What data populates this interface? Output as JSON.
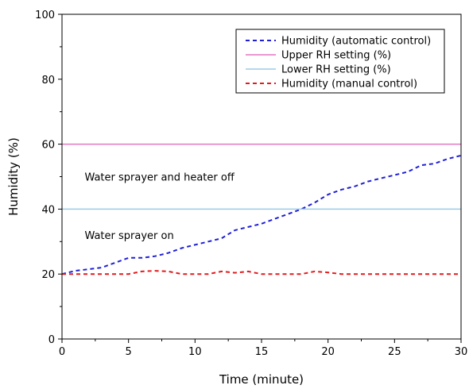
{
  "chart_data": {
    "type": "line",
    "xlabel": "Time (minute)",
    "ylabel": "Humidity (%)",
    "xlim": [
      0,
      30
    ],
    "ylim": [
      0,
      100
    ],
    "xticks": [
      0,
      5,
      10,
      15,
      20,
      25,
      30
    ],
    "yticks": [
      0,
      20,
      40,
      60,
      80,
      100
    ],
    "grid": false,
    "legend_position": "top-right",
    "series": [
      {
        "name": "Humidity (automatic control)",
        "color": "#1f1fd6",
        "style": "dashed",
        "x": [
          0,
          1,
          2,
          3,
          4,
          5,
          6,
          7,
          8,
          9,
          10,
          11,
          12,
          13,
          14,
          15,
          16,
          17,
          18,
          19,
          20,
          21,
          22,
          23,
          24,
          25,
          26,
          27,
          28,
          29,
          30
        ],
        "y": [
          20,
          21,
          21.5,
          22,
          23.5,
          25,
          25,
          25.5,
          26.5,
          28,
          29,
          30,
          31,
          33.5,
          34.5,
          35.5,
          37,
          38.5,
          40,
          42,
          44.5,
          46,
          47,
          48.5,
          49.5,
          50.5,
          51.5,
          53.5,
          54,
          55.5,
          56.5
        ]
      },
      {
        "name": "Upper RH setting (%)",
        "color": "#e377c2",
        "style": "solid",
        "x": [
          0,
          30
        ],
        "y": [
          60,
          60
        ]
      },
      {
        "name": "Lower RH setting (%)",
        "color": "#9ccbe8",
        "style": "solid",
        "x": [
          0,
          30
        ],
        "y": [
          40,
          40
        ]
      },
      {
        "name": "Humidity (manual control)",
        "color": "#e31a1c",
        "style": "dashed",
        "x": [
          0,
          2,
          4,
          5,
          6,
          7,
          8,
          9,
          10,
          11,
          12,
          13,
          14,
          15,
          16,
          17,
          18,
          19,
          20,
          21,
          22,
          24,
          26,
          28,
          30
        ],
        "y": [
          20,
          20,
          20,
          20,
          20.8,
          21,
          20.8,
          20,
          20,
          20,
          20.8,
          20.4,
          20.8,
          20,
          20,
          20,
          20,
          20.8,
          20.5,
          20,
          20,
          20,
          20,
          20,
          20
        ]
      }
    ],
    "annotations": [
      {
        "text": "Water sprayer and heater off",
        "x": 1.7,
        "y": 50
      },
      {
        "text": "Water sprayer on",
        "x": 1.7,
        "y": 32
      }
    ]
  }
}
